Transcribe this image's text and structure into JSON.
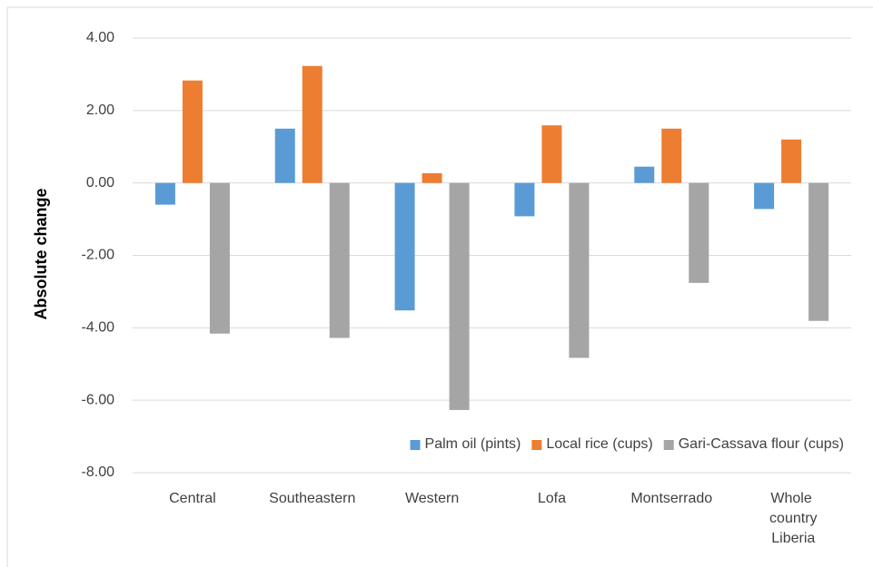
{
  "chart_data": {
    "type": "bar",
    "categories": [
      "Central",
      "Southeastern",
      "Western",
      "Lofa",
      "Montserrado",
      "Whole country Liberia"
    ],
    "series": [
      {
        "name": "Palm oil (pints)",
        "color": "#5b9bd5",
        "values": [
          -0.6,
          1.5,
          -3.52,
          -0.92,
          0.45,
          -0.72
        ]
      },
      {
        "name": "Local rice (cups)",
        "color": "#ed7d31",
        "values": [
          2.83,
          3.23,
          0.27,
          1.59,
          1.5,
          1.2
        ]
      },
      {
        "name": "Gari-Cassava flour (cups)",
        "color": "#a5a5a5",
        "values": [
          -4.16,
          -4.28,
          -6.27,
          -4.83,
          -2.76,
          -3.81
        ]
      }
    ],
    "ylabel": "Absolute change",
    "ylim": [
      -8,
      4
    ],
    "yticks": [
      {
        "value": -8,
        "label": "-8.00"
      },
      {
        "value": -6,
        "label": "-6.00"
      },
      {
        "value": -4,
        "label": "-4.00"
      },
      {
        "value": -2,
        "label": "-2.00"
      },
      {
        "value": 0,
        "label": "0.00"
      },
      {
        "value": 2,
        "label": "2.00"
      },
      {
        "value": 4,
        "label": "4.00"
      }
    ],
    "grid": true,
    "legend": "lower right"
  }
}
